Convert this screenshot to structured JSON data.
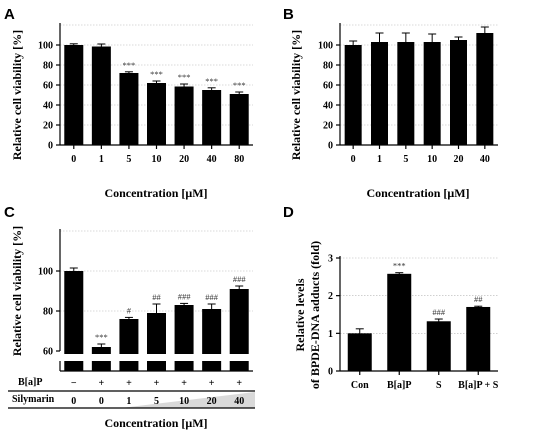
{
  "figure": {
    "panels": [
      "A",
      "B",
      "C",
      "D"
    ]
  },
  "chart_data": [
    {
      "panel": "A",
      "type": "bar",
      "categories": [
        "0",
        "1",
        "5",
        "10",
        "20",
        "40",
        "80"
      ],
      "values": [
        100,
        98.5,
        72,
        62,
        58.5,
        55,
        51
      ],
      "errors": [
        1.2,
        2.5,
        1.2,
        2.0,
        2.5,
        2.2,
        2.0
      ],
      "annotations": [
        "",
        "",
        "***",
        "***",
        "***",
        "***",
        "***"
      ],
      "xlabel": "Concentration [μM]",
      "ylabel": "Relative cell viability [%]",
      "ylim": [
        0,
        120
      ],
      "yticks": [
        "0",
        "20",
        "40",
        "60",
        "80",
        "100"
      ],
      "grid": true,
      "color": "#000000"
    },
    {
      "panel": "B",
      "type": "bar",
      "categories": [
        "0",
        "1",
        "5",
        "10",
        "20",
        "40"
      ],
      "values": [
        100,
        103,
        103,
        103,
        105,
        112
      ],
      "errors": [
        4,
        9,
        9,
        8,
        3,
        6
      ],
      "annotations": [
        "",
        "",
        "",
        "",
        "",
        ""
      ],
      "xlabel": "Concentration [μM]",
      "ylabel": "Relative cell viability [%]",
      "ylim": [
        0,
        120
      ],
      "yticks": [
        "0",
        "20",
        "40",
        "60",
        "80",
        "100"
      ],
      "grid": true,
      "color": "#000000"
    },
    {
      "panel": "C",
      "type": "bar",
      "categories": [
        "0",
        "0",
        "1",
        "5",
        "10",
        "20",
        "40"
      ],
      "values": [
        100,
        62,
        76,
        79,
        83,
        81,
        91
      ],
      "errors": [
        1.5,
        1.5,
        0.8,
        4.5,
        0.8,
        2.5,
        1.5
      ],
      "annotations": [
        "",
        "***",
        "#",
        "##",
        "###",
        "###",
        "###"
      ],
      "baP_row": [
        "−",
        "+",
        "+",
        "+",
        "+",
        "+",
        "+"
      ],
      "row_labels": {
        "baP": "B[a]P",
        "silymarin": "Silymarin"
      },
      "xlabel": "Concentration [μM]",
      "ylabel": "Relative cell viability [%]",
      "ylim": [
        60,
        120
      ],
      "yticks": [
        "60",
        "80",
        "100"
      ],
      "y_break": true,
      "grid": true,
      "color": "#000000"
    },
    {
      "panel": "D",
      "type": "bar",
      "categories": [
        "Con",
        "B[a]P",
        "S",
        "B[a]P + S"
      ],
      "values": [
        1.0,
        2.58,
        1.32,
        1.7
      ],
      "errors": [
        0.12,
        0.03,
        0.06,
        0.02
      ],
      "annotations": [
        "",
        "***",
        "###",
        "##"
      ],
      "xlabel": "",
      "ylabel_lines": [
        "Relative levels",
        "of BPDE-DNA adducts (fold)"
      ],
      "ylim": [
        0,
        3
      ],
      "yticks": [
        "0",
        "1",
        "2",
        "3"
      ],
      "grid": true,
      "color": "#000000"
    }
  ]
}
